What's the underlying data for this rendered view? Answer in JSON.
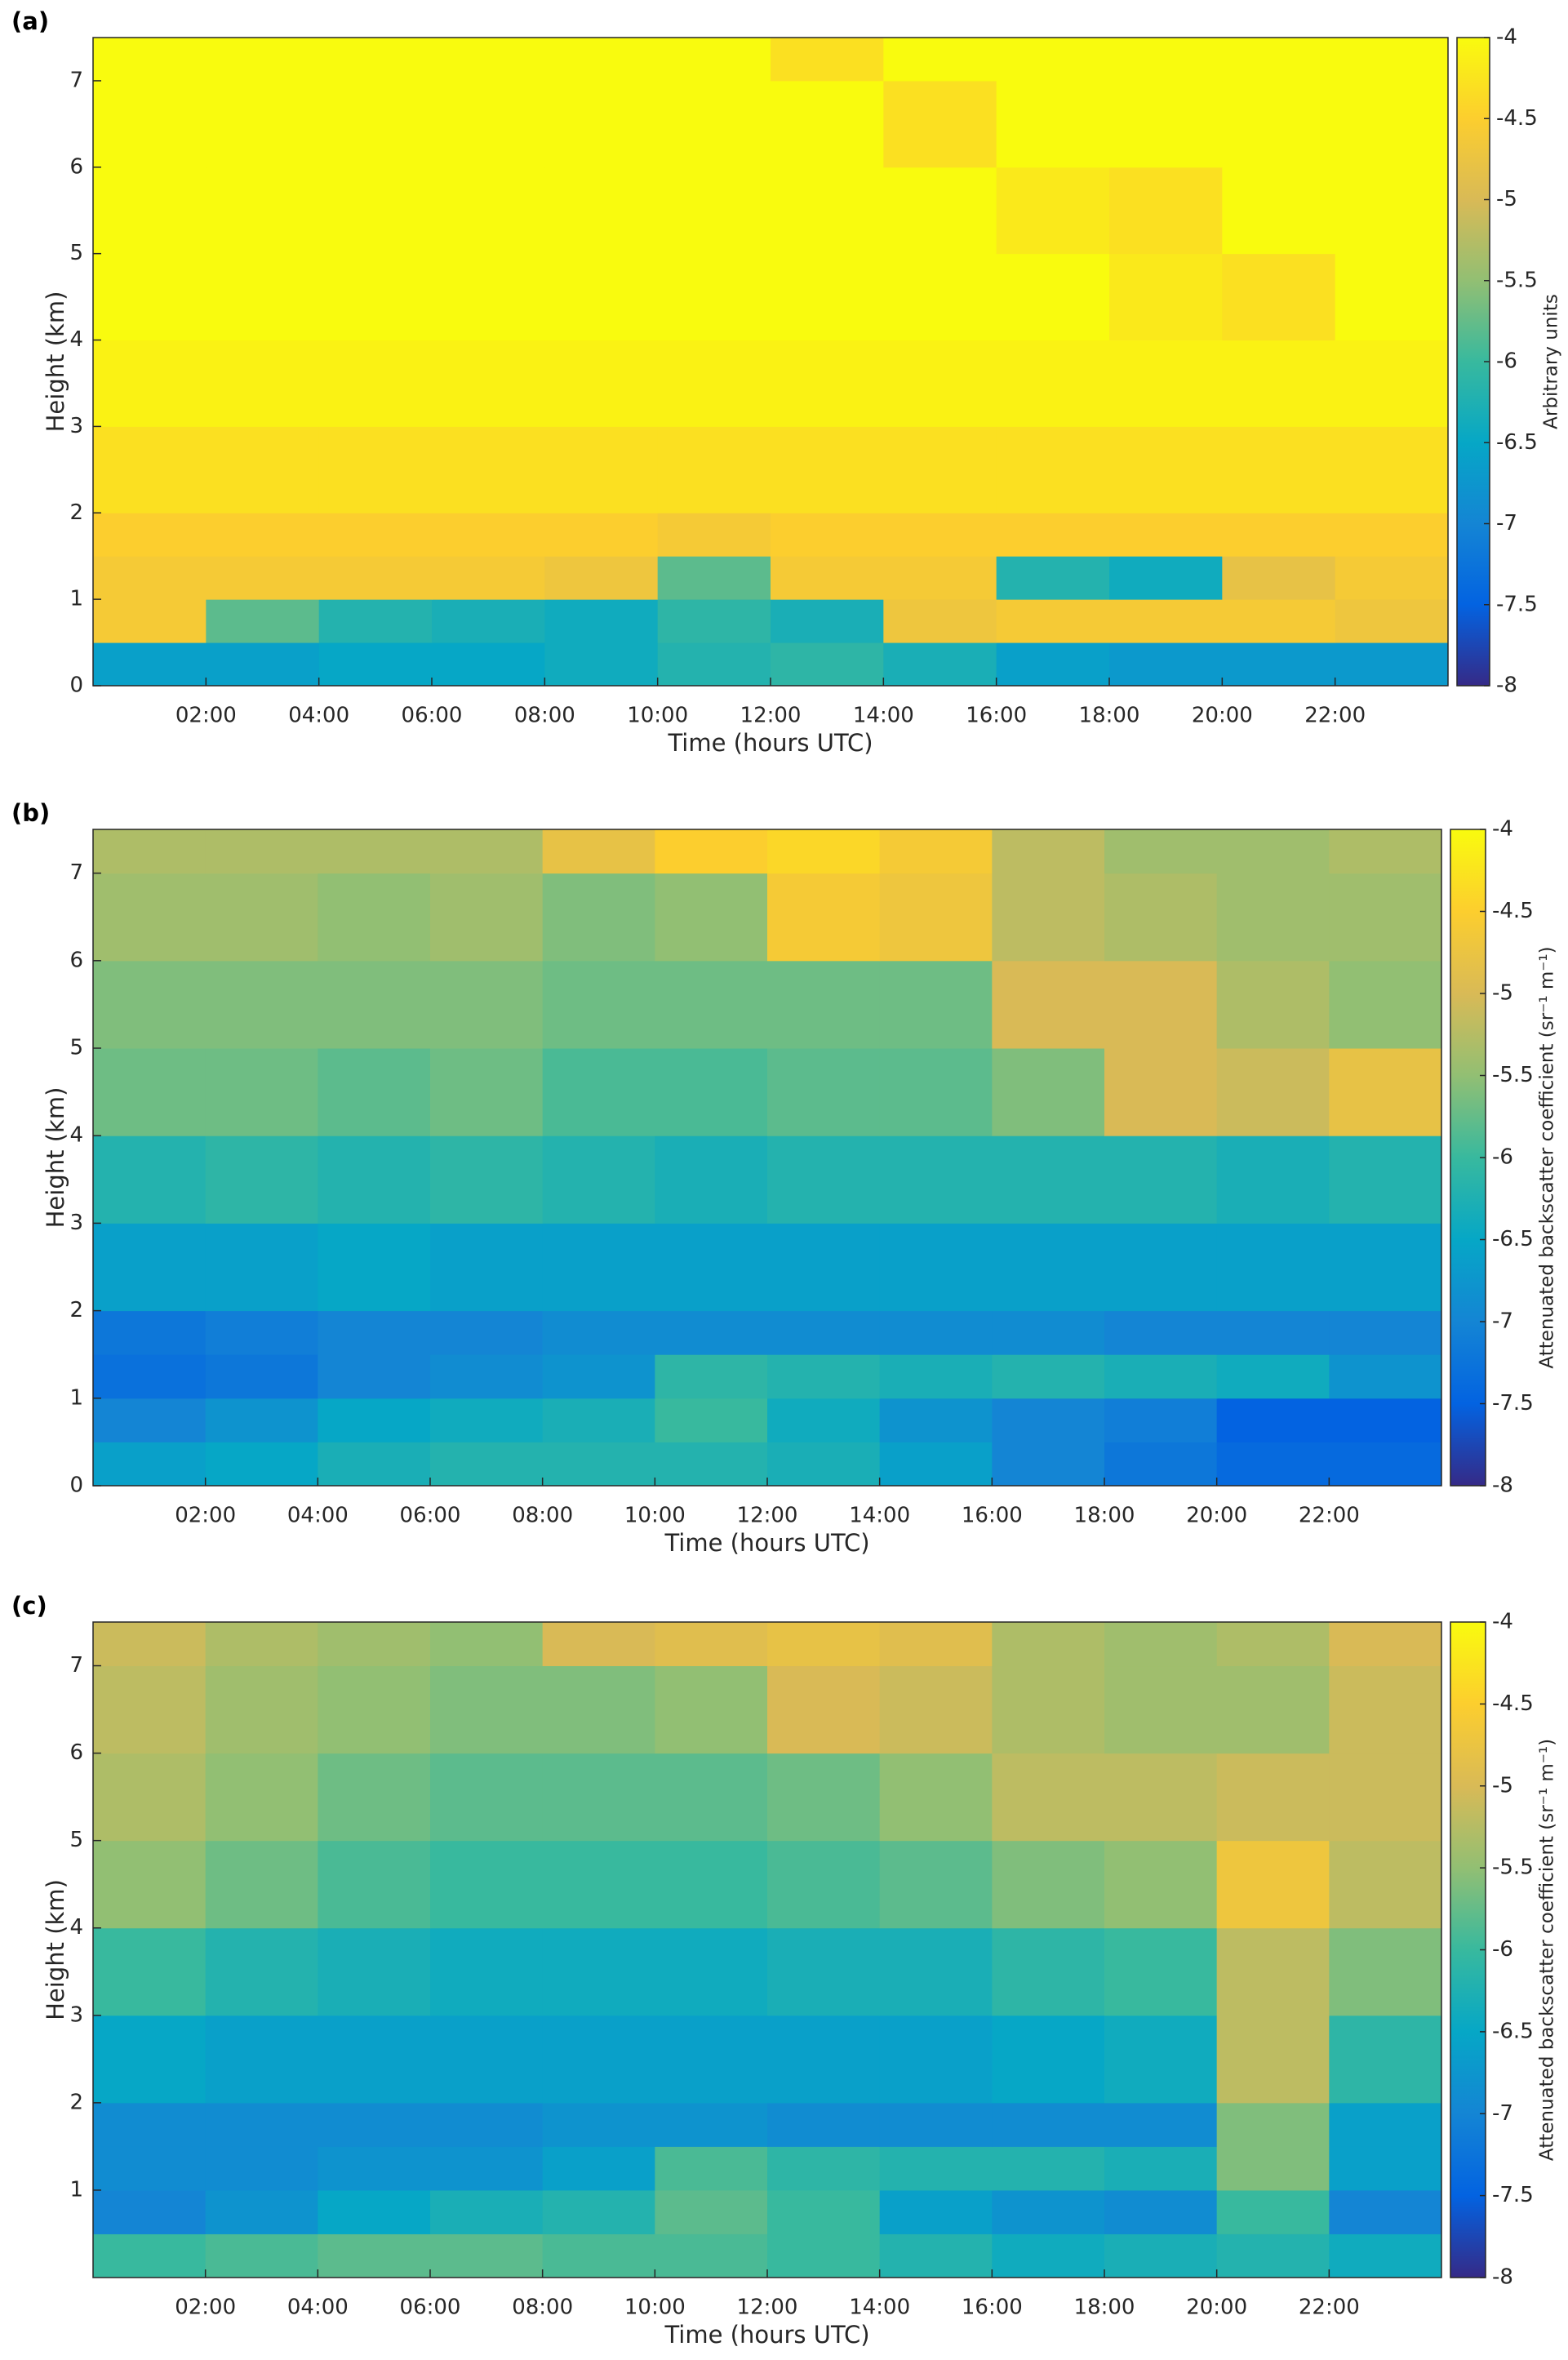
{
  "chart_data": [
    {
      "type": "heatmap",
      "panel_label": "(a)",
      "xlabel": "Time (hours UTC)",
      "ylabel": "Height (km)",
      "colorbar_label": "Arbitrary units",
      "xlim": [
        0,
        24
      ],
      "ylim": [
        0,
        7.5
      ],
      "clim": [
        -8,
        -4
      ],
      "xticks": [
        {
          "value": 2,
          "label": "02:00"
        },
        {
          "value": 4,
          "label": "04:00"
        },
        {
          "value": 6,
          "label": "06:00"
        },
        {
          "value": 8,
          "label": "08:00"
        },
        {
          "value": 10,
          "label": "10:00"
        },
        {
          "value": 12,
          "label": "12:00"
        },
        {
          "value": 14,
          "label": "14:00"
        },
        {
          "value": 16,
          "label": "16:00"
        },
        {
          "value": 18,
          "label": "18:00"
        },
        {
          "value": 20,
          "label": "20:00"
        },
        {
          "value": 22,
          "label": "22:00"
        }
      ],
      "yticks": [
        0,
        1,
        2,
        3,
        4,
        5,
        6,
        7
      ],
      "cticks": [
        -4,
        -4.5,
        -5,
        -5.5,
        -6,
        -6.5,
        -7,
        -7.5,
        -8
      ],
      "colormap": [
        "#352a87",
        "#0363e1",
        "#1485d4",
        "#06a7c6",
        "#38b99e",
        "#92bf73",
        "#d9ba56",
        "#fcce2e",
        "#f9fb0e"
      ],
      "xbins": [
        0,
        2,
        4,
        6,
        8,
        10,
        12,
        14,
        16,
        18,
        20,
        22,
        24
      ],
      "ybins": [
        0,
        0.5,
        1,
        1.5,
        2,
        3,
        4,
        5,
        6,
        7,
        7.5
      ],
      "z": [
        [
          -6.6,
          -6.6,
          -6.5,
          -6.5,
          -6.4,
          -6.2,
          -6.1,
          -6.3,
          -6.6,
          -6.7,
          -6.7,
          -6.7
        ],
        [
          -4.6,
          -5.8,
          -6.2,
          -6.3,
          -6.4,
          -6.1,
          -6.3,
          -4.7,
          -4.6,
          -4.6,
          -4.6,
          -4.7
        ],
        [
          -4.6,
          -4.6,
          -4.6,
          -4.6,
          -4.7,
          -5.8,
          -4.6,
          -4.6,
          -6.2,
          -6.4,
          -4.8,
          -4.6
        ],
        [
          -4.5,
          -4.5,
          -4.5,
          -4.5,
          -4.5,
          -4.6,
          -4.5,
          -4.5,
          -4.5,
          -4.5,
          -4.5,
          -4.5
        ],
        [
          -4.3,
          -4.3,
          -4.3,
          -4.3,
          -4.3,
          -4.3,
          -4.3,
          -4.3,
          -4.3,
          -4.3,
          -4.3,
          -4.3
        ],
        [
          -4.1,
          -4.1,
          -4.1,
          -4.1,
          -4.1,
          -4.1,
          -4.1,
          -4.1,
          -4.1,
          -4.1,
          -4.1,
          -4.1
        ],
        [
          -4,
          -4,
          -4,
          -4,
          -4,
          -4,
          -4,
          -4,
          -4,
          -4.2,
          -4.3,
          -4
        ],
        [
          -4,
          -4,
          -4,
          -4,
          -4,
          -4,
          -4,
          -4,
          -4.2,
          -4.3,
          -4,
          -4
        ],
        [
          -4,
          -4,
          -4,
          -4,
          -4,
          -4,
          -4,
          -4.3,
          -4,
          -4,
          -4,
          -4
        ],
        [
          -4,
          -4,
          -4,
          -4,
          -4,
          -4,
          -4.3,
          -4,
          -4,
          -4,
          -4,
          -4
        ]
      ]
    },
    {
      "type": "heatmap",
      "panel_label": "(b)",
      "xlabel": "Time (hours UTC)",
      "ylabel": "Height (km)",
      "colorbar_label": "Attenuated backscatter coefficient (sr⁻¹ m⁻¹)",
      "xlim": [
        0,
        24
      ],
      "ylim": [
        0,
        7.5
      ],
      "clim": [
        -8,
        -4
      ],
      "xticks": [
        {
          "value": 2,
          "label": "02:00"
        },
        {
          "value": 4,
          "label": "04:00"
        },
        {
          "value": 6,
          "label": "06:00"
        },
        {
          "value": 8,
          "label": "08:00"
        },
        {
          "value": 10,
          "label": "10:00"
        },
        {
          "value": 12,
          "label": "12:00"
        },
        {
          "value": 14,
          "label": "14:00"
        },
        {
          "value": 16,
          "label": "16:00"
        },
        {
          "value": 18,
          "label": "18:00"
        },
        {
          "value": 20,
          "label": "20:00"
        },
        {
          "value": 22,
          "label": "22:00"
        }
      ],
      "yticks": [
        0,
        1,
        2,
        3,
        4,
        5,
        6,
        7
      ],
      "cticks": [
        -4,
        -4.5,
        -5,
        -5.5,
        -6,
        -6.5,
        -7,
        -7.5,
        -8
      ],
      "colormap": [
        "#352a87",
        "#0363e1",
        "#1485d4",
        "#06a7c6",
        "#38b99e",
        "#92bf73",
        "#d9ba56",
        "#fcce2e",
        "#f9fb0e"
      ],
      "xbins": [
        0,
        2,
        4,
        6,
        8,
        10,
        12,
        14,
        16,
        18,
        20,
        22,
        24
      ],
      "ybins": [
        0,
        0.5,
        1,
        1.5,
        2,
        3,
        4,
        5,
        6,
        7,
        7.5
      ],
      "z": [
        [
          -6.6,
          -6.5,
          -6.3,
          -6.2,
          -6.2,
          -6.2,
          -6.3,
          -6.6,
          -7.0,
          -7.2,
          -7.4,
          -7.4
        ],
        [
          -7.0,
          -6.8,
          -6.5,
          -6.4,
          -6.3,
          -6.0,
          -6.4,
          -6.8,
          -7.0,
          -7.1,
          -7.5,
          -7.5
        ],
        [
          -7.3,
          -7.2,
          -7.0,
          -6.9,
          -6.8,
          -6.1,
          -6.2,
          -6.3,
          -6.2,
          -6.3,
          -6.4,
          -6.8
        ],
        [
          -7.2,
          -7.1,
          -7.0,
          -7.0,
          -6.9,
          -6.9,
          -6.9,
          -6.9,
          -6.9,
          -7.0,
          -7.0,
          -7.0
        ],
        [
          -6.6,
          -6.6,
          -6.5,
          -6.6,
          -6.6,
          -6.6,
          -6.6,
          -6.6,
          -6.6,
          -6.6,
          -6.6,
          -6.6
        ],
        [
          -6.2,
          -6.1,
          -6.2,
          -6.1,
          -6.2,
          -6.3,
          -6.2,
          -6.2,
          -6.2,
          -6.2,
          -6.3,
          -6.2
        ],
        [
          -5.7,
          -5.7,
          -5.8,
          -5.7,
          -5.9,
          -5.9,
          -5.8,
          -5.8,
          -5.6,
          -5.0,
          -5.1,
          -4.8
        ],
        [
          -5.6,
          -5.6,
          -5.6,
          -5.6,
          -5.7,
          -5.7,
          -5.7,
          -5.7,
          -5.0,
          -5.0,
          -5.3,
          -5.5
        ],
        [
          -5.4,
          -5.4,
          -5.5,
          -5.4,
          -5.6,
          -5.5,
          -4.6,
          -4.7,
          -5.2,
          -5.3,
          -5.4,
          -5.4
        ],
        [
          -5.3,
          -5.3,
          -5.3,
          -5.3,
          -4.8,
          -4.5,
          -4.4,
          -4.6,
          -5.2,
          -5.4,
          -5.4,
          -5.3
        ]
      ]
    },
    {
      "type": "heatmap",
      "panel_label": "(c)",
      "xlabel": "Time (hours UTC)",
      "ylabel": "Height (km)",
      "colorbar_label": "Attenuated backscatter coefficient (sr⁻¹ m⁻¹)",
      "xlim": [
        0,
        24
      ],
      "ylim": [
        0,
        7.5
      ],
      "clim": [
        -8,
        -4
      ],
      "xticks": [
        {
          "value": 2,
          "label": "02:00"
        },
        {
          "value": 4,
          "label": "04:00"
        },
        {
          "value": 6,
          "label": "06:00"
        },
        {
          "value": 8,
          "label": "08:00"
        },
        {
          "value": 10,
          "label": "10:00"
        },
        {
          "value": 12,
          "label": "12:00"
        },
        {
          "value": 14,
          "label": "14:00"
        },
        {
          "value": 16,
          "label": "16:00"
        },
        {
          "value": 18,
          "label": "18:00"
        },
        {
          "value": 20,
          "label": "20:00"
        },
        {
          "value": 22,
          "label": "22:00"
        }
      ],
      "yticks": [
        1,
        2,
        3,
        4,
        5,
        6,
        7
      ],
      "cticks": [
        -4,
        -4.5,
        -5,
        -5.5,
        -6,
        -6.5,
        -7,
        -7.5,
        -8
      ],
      "colormap": [
        "#352a87",
        "#0363e1",
        "#1485d4",
        "#06a7c6",
        "#38b99e",
        "#92bf73",
        "#d9ba56",
        "#fcce2e",
        "#f9fb0e"
      ],
      "xbins": [
        0,
        2,
        4,
        6,
        8,
        10,
        12,
        14,
        16,
        18,
        20,
        22,
        24
      ],
      "ybins": [
        0,
        0.5,
        1,
        1.5,
        2,
        3,
        4,
        5,
        6,
        7,
        7.5
      ],
      "z": [
        [
          -6.0,
          -5.9,
          -5.8,
          -5.8,
          -5.9,
          -5.9,
          -6.0,
          -6.2,
          -6.4,
          -6.3,
          -6.2,
          -6.4
        ],
        [
          -7.0,
          -6.8,
          -6.5,
          -6.3,
          -6.2,
          -5.8,
          -6.0,
          -6.6,
          -6.8,
          -6.9,
          -6.0,
          -7.0
        ],
        [
          -6.9,
          -6.9,
          -6.8,
          -6.8,
          -6.6,
          -5.9,
          -6.1,
          -6.2,
          -6.2,
          -6.3,
          -5.6,
          -6.6
        ],
        [
          -6.9,
          -6.9,
          -6.9,
          -6.9,
          -6.8,
          -6.8,
          -6.9,
          -6.9,
          -6.9,
          -6.9,
          -5.6,
          -6.6
        ],
        [
          -6.5,
          -6.6,
          -6.6,
          -6.6,
          -6.6,
          -6.6,
          -6.6,
          -6.6,
          -6.5,
          -6.4,
          -5.2,
          -6.1
        ],
        [
          -6.0,
          -6.2,
          -6.3,
          -6.4,
          -6.4,
          -6.4,
          -6.3,
          -6.3,
          -6.1,
          -6.0,
          -5.2,
          -5.6
        ],
        [
          -5.5,
          -5.7,
          -5.9,
          -6.0,
          -6.0,
          -6.0,
          -5.9,
          -5.8,
          -5.6,
          -5.5,
          -4.7,
          -5.2
        ],
        [
          -5.3,
          -5.5,
          -5.7,
          -5.8,
          -5.8,
          -5.8,
          -5.7,
          -5.5,
          -5.2,
          -5.2,
          -5.1,
          -5.1
        ],
        [
          -5.2,
          -5.4,
          -5.5,
          -5.6,
          -5.6,
          -5.5,
          -5.0,
          -5.1,
          -5.3,
          -5.4,
          -5.4,
          -5.1
        ],
        [
          -5.1,
          -5.3,
          -5.4,
          -5.5,
          -5.0,
          -4.9,
          -4.8,
          -4.9,
          -5.3,
          -5.4,
          -5.3,
          -5.0
        ]
      ]
    }
  ]
}
